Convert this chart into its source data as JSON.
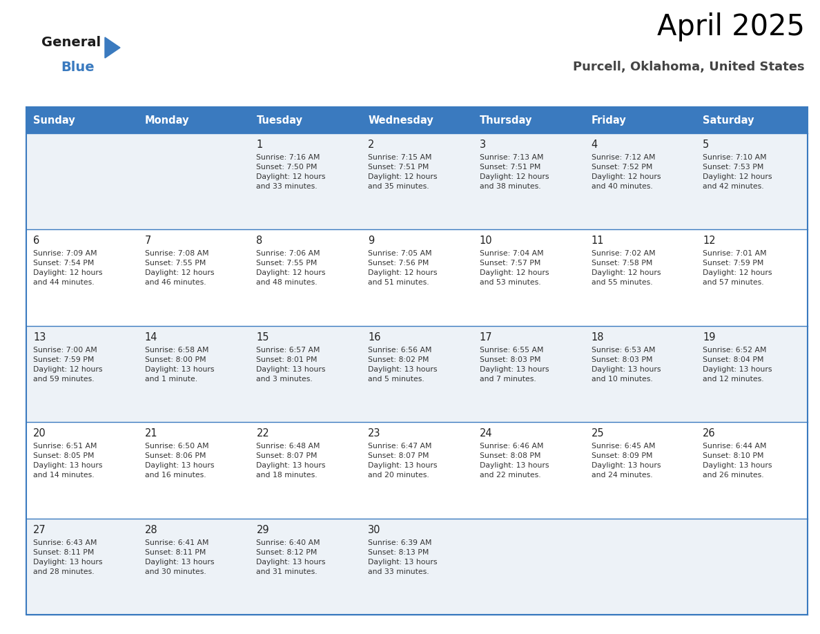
{
  "title": "April 2025",
  "subtitle": "Purcell, Oklahoma, United States",
  "header_bg": "#3a7abf",
  "header_text": "#ffffff",
  "row_bg_odd": "#edf2f7",
  "row_bg_even": "#ffffff",
  "border_color": "#3a7abf",
  "text_color": "#333333",
  "days_of_week": [
    "Sunday",
    "Monday",
    "Tuesday",
    "Wednesday",
    "Thursday",
    "Friday",
    "Saturday"
  ],
  "weeks": [
    [
      {
        "day": "",
        "info": ""
      },
      {
        "day": "",
        "info": ""
      },
      {
        "day": "1",
        "info": "Sunrise: 7:16 AM\nSunset: 7:50 PM\nDaylight: 12 hours\nand 33 minutes."
      },
      {
        "day": "2",
        "info": "Sunrise: 7:15 AM\nSunset: 7:51 PM\nDaylight: 12 hours\nand 35 minutes."
      },
      {
        "day": "3",
        "info": "Sunrise: 7:13 AM\nSunset: 7:51 PM\nDaylight: 12 hours\nand 38 minutes."
      },
      {
        "day": "4",
        "info": "Sunrise: 7:12 AM\nSunset: 7:52 PM\nDaylight: 12 hours\nand 40 minutes."
      },
      {
        "day": "5",
        "info": "Sunrise: 7:10 AM\nSunset: 7:53 PM\nDaylight: 12 hours\nand 42 minutes."
      }
    ],
    [
      {
        "day": "6",
        "info": "Sunrise: 7:09 AM\nSunset: 7:54 PM\nDaylight: 12 hours\nand 44 minutes."
      },
      {
        "day": "7",
        "info": "Sunrise: 7:08 AM\nSunset: 7:55 PM\nDaylight: 12 hours\nand 46 minutes."
      },
      {
        "day": "8",
        "info": "Sunrise: 7:06 AM\nSunset: 7:55 PM\nDaylight: 12 hours\nand 48 minutes."
      },
      {
        "day": "9",
        "info": "Sunrise: 7:05 AM\nSunset: 7:56 PM\nDaylight: 12 hours\nand 51 minutes."
      },
      {
        "day": "10",
        "info": "Sunrise: 7:04 AM\nSunset: 7:57 PM\nDaylight: 12 hours\nand 53 minutes."
      },
      {
        "day": "11",
        "info": "Sunrise: 7:02 AM\nSunset: 7:58 PM\nDaylight: 12 hours\nand 55 minutes."
      },
      {
        "day": "12",
        "info": "Sunrise: 7:01 AM\nSunset: 7:59 PM\nDaylight: 12 hours\nand 57 minutes."
      }
    ],
    [
      {
        "day": "13",
        "info": "Sunrise: 7:00 AM\nSunset: 7:59 PM\nDaylight: 12 hours\nand 59 minutes."
      },
      {
        "day": "14",
        "info": "Sunrise: 6:58 AM\nSunset: 8:00 PM\nDaylight: 13 hours\nand 1 minute."
      },
      {
        "day": "15",
        "info": "Sunrise: 6:57 AM\nSunset: 8:01 PM\nDaylight: 13 hours\nand 3 minutes."
      },
      {
        "day": "16",
        "info": "Sunrise: 6:56 AM\nSunset: 8:02 PM\nDaylight: 13 hours\nand 5 minutes."
      },
      {
        "day": "17",
        "info": "Sunrise: 6:55 AM\nSunset: 8:03 PM\nDaylight: 13 hours\nand 7 minutes."
      },
      {
        "day": "18",
        "info": "Sunrise: 6:53 AM\nSunset: 8:03 PM\nDaylight: 13 hours\nand 10 minutes."
      },
      {
        "day": "19",
        "info": "Sunrise: 6:52 AM\nSunset: 8:04 PM\nDaylight: 13 hours\nand 12 minutes."
      }
    ],
    [
      {
        "day": "20",
        "info": "Sunrise: 6:51 AM\nSunset: 8:05 PM\nDaylight: 13 hours\nand 14 minutes."
      },
      {
        "day": "21",
        "info": "Sunrise: 6:50 AM\nSunset: 8:06 PM\nDaylight: 13 hours\nand 16 minutes."
      },
      {
        "day": "22",
        "info": "Sunrise: 6:48 AM\nSunset: 8:07 PM\nDaylight: 13 hours\nand 18 minutes."
      },
      {
        "day": "23",
        "info": "Sunrise: 6:47 AM\nSunset: 8:07 PM\nDaylight: 13 hours\nand 20 minutes."
      },
      {
        "day": "24",
        "info": "Sunrise: 6:46 AM\nSunset: 8:08 PM\nDaylight: 13 hours\nand 22 minutes."
      },
      {
        "day": "25",
        "info": "Sunrise: 6:45 AM\nSunset: 8:09 PM\nDaylight: 13 hours\nand 24 minutes."
      },
      {
        "day": "26",
        "info": "Sunrise: 6:44 AM\nSunset: 8:10 PM\nDaylight: 13 hours\nand 26 minutes."
      }
    ],
    [
      {
        "day": "27",
        "info": "Sunrise: 6:43 AM\nSunset: 8:11 PM\nDaylight: 13 hours\nand 28 minutes."
      },
      {
        "day": "28",
        "info": "Sunrise: 6:41 AM\nSunset: 8:11 PM\nDaylight: 13 hours\nand 30 minutes."
      },
      {
        "day": "29",
        "info": "Sunrise: 6:40 AM\nSunset: 8:12 PM\nDaylight: 13 hours\nand 31 minutes."
      },
      {
        "day": "30",
        "info": "Sunrise: 6:39 AM\nSunset: 8:13 PM\nDaylight: 13 hours\nand 33 minutes."
      },
      {
        "day": "",
        "info": ""
      },
      {
        "day": "",
        "info": ""
      },
      {
        "day": "",
        "info": ""
      }
    ]
  ],
  "logo_general_color": "#1a1a1a",
  "logo_blue_color": "#3a7abf",
  "logo_triangle_color": "#3a7abf"
}
